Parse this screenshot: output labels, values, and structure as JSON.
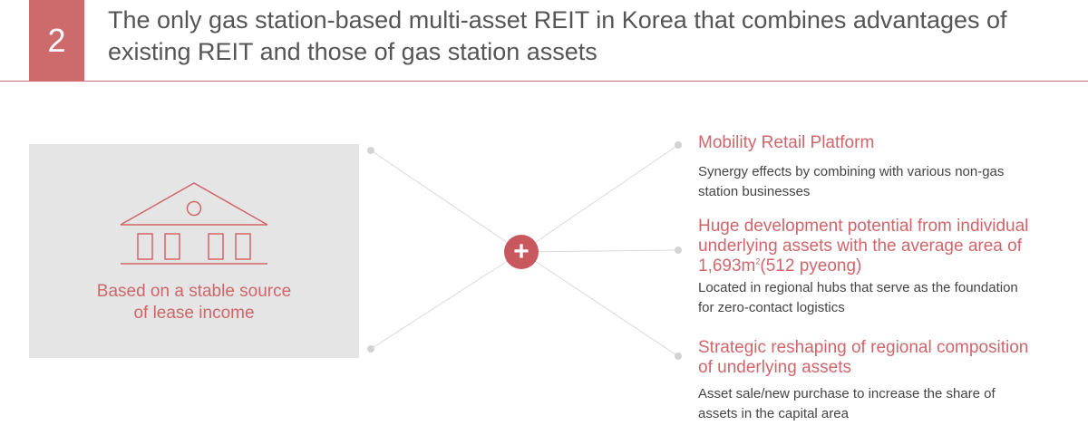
{
  "header": {
    "number": "2",
    "title_line1": "The only gas station-based multi-asset REIT in Korea that combines advantages of",
    "title_line2": "existing REIT and those of gas station assets"
  },
  "left_panel": {
    "icon": "house-icon",
    "label_line1": "Based on a stable source",
    "label_line2": "of lease income"
  },
  "center": {
    "symbol": "+"
  },
  "items": [
    {
      "title_lines": [
        "Mobility Retail Platform"
      ],
      "desc_lines": [
        "Synergy effects by combining with various non-gas",
        "station businesses"
      ]
    },
    {
      "title_lines": [
        "Huge development potential from individual",
        "underlying assets with the average area of"
      ],
      "title_line3_pre": "1,693m",
      "title_line3_sup": "2",
      "title_line3_post": "(512 pyeong)",
      "desc_lines": [
        "Located in regional hubs that serve as the foundation",
        "for zero-contact logistics"
      ]
    },
    {
      "title_lines": [
        "Strategic reshaping of regional composition",
        "of underlying assets"
      ],
      "desc_lines": [
        "Asset sale/new purchase to increase the share of",
        "assets in the capital area"
      ]
    }
  ],
  "colors": {
    "accent": "#cd6a6c",
    "accent_text": "#d0666a",
    "panel_bg": "#e5e5e5",
    "line": "#d9d9d9"
  }
}
